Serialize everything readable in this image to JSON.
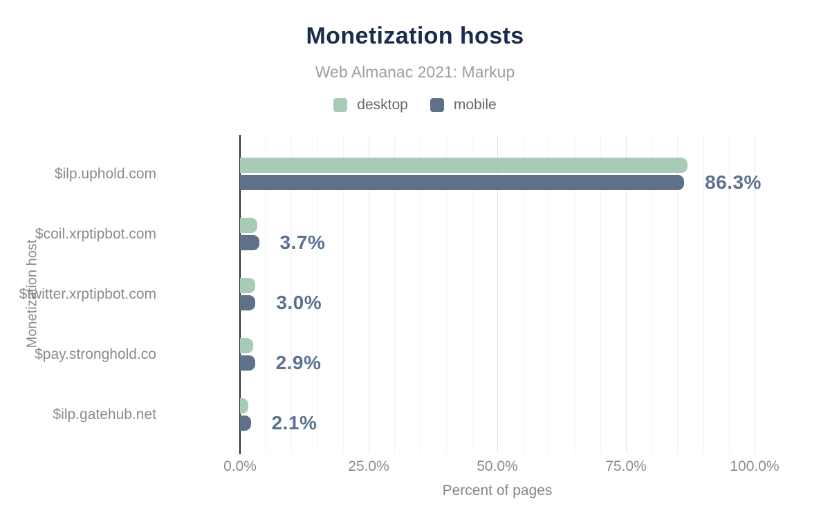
{
  "title": "Monetization hosts",
  "subtitle": "Web Almanac 2021: Markup",
  "axes": {
    "x_title": "Percent of pages",
    "y_title": "Monetization host",
    "x_ticks": [
      "0.0%",
      "25.0%",
      "50.0%",
      "75.0%",
      "100.0%"
    ]
  },
  "chart_data": {
    "type": "bar",
    "orientation": "horizontal",
    "title": "Monetization hosts",
    "subtitle": "Web Almanac 2021: Markup",
    "xlabel": "Percent of pages",
    "ylabel": "Monetization host",
    "xlim": [
      0,
      100
    ],
    "xtick_interval": 25,
    "minor_gridline_interval": 5,
    "grid": "vertical gridlines on",
    "legend_position": "top",
    "categories": [
      "$ilp.uphold.com",
      "$coil.xrptipbot.com",
      "$twitter.xrptipbot.com",
      "$pay.stronghold.co",
      "$ilp.gatehub.net"
    ],
    "series": [
      {
        "name": "desktop",
        "color": "#a8cbb7",
        "values": [
          87.0,
          3.3,
          2.9,
          2.5,
          1.6
        ]
      },
      {
        "name": "mobile",
        "color": "#5f7189",
        "values": [
          86.3,
          3.7,
          3.0,
          2.9,
          2.1
        ]
      }
    ],
    "value_labels": [
      "86.3%",
      "3.7%",
      "3.0%",
      "2.9%",
      "2.1%"
    ],
    "value_labels_refer_to": "mobile"
  },
  "colors": {
    "background": "#ffffff",
    "title": "#1b2b4b",
    "subtitle": "#9b9fa3",
    "legend_text": "#66696d",
    "axis_line": "#24282e",
    "tick_label": "#898c8f",
    "gridline_minor": "#f1f2f4",
    "gridline_major": "#e2e4e7",
    "value_label": "#5c7190",
    "desktop_bar": "#a8cbb7",
    "mobile_bar": "#5f7189"
  }
}
